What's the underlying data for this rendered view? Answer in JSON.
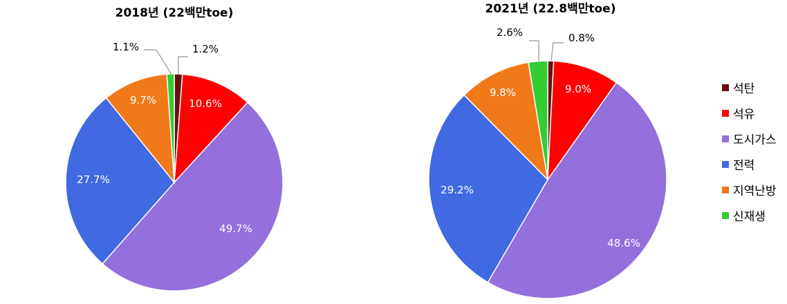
{
  "chart_data": [
    {
      "type": "pie",
      "title": "2018년 (22백만toe)",
      "categories": [
        "석탄",
        "석유",
        "도시가스",
        "전력",
        "지역난방",
        "신재생"
      ],
      "values": [
        1.2,
        10.6,
        49.7,
        27.7,
        9.7,
        1.1
      ],
      "labels": [
        "1.2%",
        "10.6%",
        "49.7%",
        "27.7%",
        "9.7%",
        "1.1%"
      ]
    },
    {
      "type": "pie",
      "title": "2021년 (22.8백만toe)",
      "categories": [
        "석탄",
        "석유",
        "도시가스",
        "전력",
        "지역난방",
        "신재생"
      ],
      "values": [
        0.8,
        9.0,
        48.6,
        29.2,
        9.8,
        2.6
      ],
      "labels": [
        "0.8%",
        "9.0%",
        "48.6%",
        "29.2%",
        "9.8%",
        "2.6%"
      ]
    }
  ],
  "legend": {
    "position": "right",
    "items": [
      {
        "label": "석탄",
        "color": "#6b1010"
      },
      {
        "label": "석유",
        "color": "#ff0000"
      },
      {
        "label": "도시가스",
        "color": "#9370db"
      },
      {
        "label": "전력",
        "color": "#4169e1"
      },
      {
        "label": "지역난방",
        "color": "#f07a1a"
      },
      {
        "label": "신재생",
        "color": "#33cc33"
      }
    ]
  }
}
